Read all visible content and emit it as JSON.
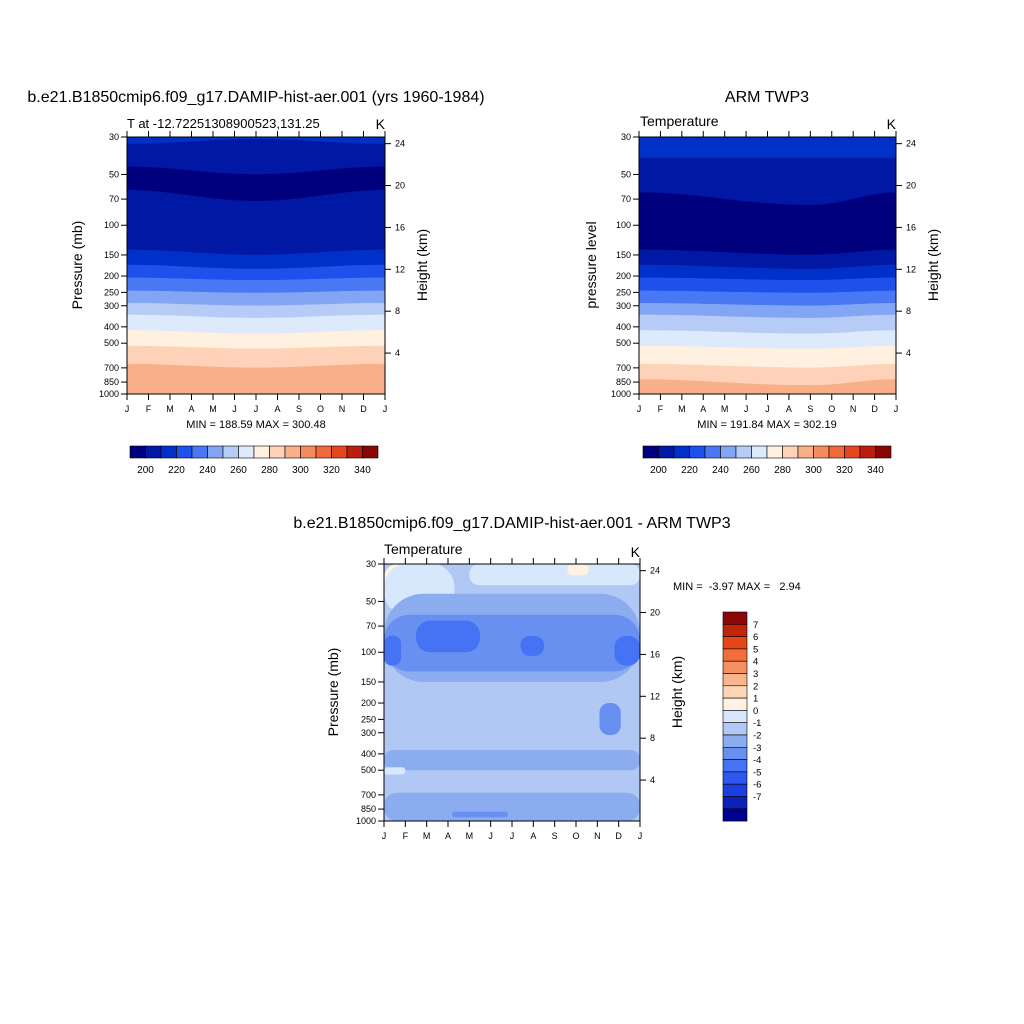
{
  "months": [
    "J",
    "F",
    "M",
    "A",
    "M",
    "J",
    "J",
    "A",
    "S",
    "O",
    "N",
    "D",
    "J"
  ],
  "pressure_ticks": [
    "30",
    "50",
    "70",
    "100",
    "150",
    "200",
    "250",
    "300",
    "400",
    "500",
    "700",
    "850",
    "1000"
  ],
  "height_ticks": [
    "24",
    "20",
    "16",
    "12",
    "8",
    "4"
  ],
  "abs_palette": [
    "#00007f",
    "#0018a3",
    "#0030c8",
    "#1e50ec",
    "#4a78f4",
    "#82a6f4",
    "#b6ccf6",
    "#dceafc",
    "#fff0e0",
    "#fdd2b8",
    "#f9b088",
    "#f58c60",
    "#f06a3c",
    "#e44620",
    "#bc1e0e",
    "#8a0606"
  ],
  "abs_colorbar_labels": [
    "200",
    "220",
    "240",
    "260",
    "280",
    "300",
    "320",
    "340"
  ],
  "diff_palette": [
    "#000090",
    "#0a22b8",
    "#1a3ee0",
    "#2e56f0",
    "#4672f4",
    "#6890f0",
    "#8cacf0",
    "#b2c8f4",
    "#d8e8fc",
    "#fff2e4",
    "#fdd6b8",
    "#f9b48c",
    "#f59062",
    "#f26c3c",
    "#e54618",
    "#c22408",
    "#8c0808"
  ],
  "diff_colorbar_labels": [
    "7",
    "6",
    "5",
    "4",
    "3",
    "2",
    "1",
    "0",
    "-1",
    "-2",
    "-3",
    "-4",
    "-5",
    "-6",
    "-7"
  ],
  "chart_data": [
    {
      "type": "heatmap",
      "title": "b.e21.B1850cmip6.f09_g17.DAMIP-hist-aer.001 (yrs 1960-1984)",
      "left_subtitle": "T at -12.72251308900523,131.25",
      "units": "K",
      "ylabel": "Pressure (mb)",
      "ylabel_right": "Height (km)",
      "stats": "MIN = 188.59 MAX = 300.48",
      "x_range": [
        0,
        12
      ],
      "y_range_mb": [
        1000,
        30
      ],
      "levels_mb": [
        30,
        50,
        70,
        100,
        150,
        200,
        250,
        300,
        400,
        500,
        700,
        850,
        1000
      ],
      "band_boundaries_mb_by_month": [
        {
          "month": 0,
          "boundaries": [
            33,
            45,
            62,
            140,
            172,
            205,
            245,
            290,
            340,
            420,
            520,
            665,
            820
          ]
        },
        {
          "month": 6,
          "boundaries": [
            31,
            50,
            72,
            150,
            182,
            212,
            252,
            300,
            355,
            440,
            540,
            700,
            890
          ]
        },
        {
          "month": 12,
          "boundaries": [
            33,
            45,
            62,
            140,
            172,
            205,
            245,
            290,
            340,
            420,
            520,
            665,
            820
          ]
        }
      ],
      "band_color_index": [
        2,
        1,
        0,
        1,
        2,
        3,
        4,
        5,
        6,
        7,
        8,
        9,
        10
      ]
    },
    {
      "type": "heatmap",
      "title": "ARM TWP3",
      "left_subtitle": "Temperature",
      "units": "K",
      "ylabel": "pressure level",
      "ylabel_right": "Height (km)",
      "stats": "MIN = 191.84 MAX = 302.19",
      "x_range": [
        0,
        12
      ],
      "y_range_mb": [
        1000,
        30
      ],
      "levels_mb": [
        30,
        50,
        70,
        100,
        150,
        200,
        250,
        300,
        400,
        500,
        700,
        850,
        1000
      ],
      "band_boundaries_mb_by_month": [
        {
          "month": 0,
          "boundaries": [
            40,
            64,
            140,
            172,
            205,
            245,
            290,
            340,
            420,
            520,
            665,
            820
          ]
        },
        {
          "month": 8,
          "boundaries": [
            40,
            76,
            150,
            182,
            212,
            252,
            300,
            355,
            440,
            540,
            700,
            890
          ]
        },
        {
          "month": 12,
          "boundaries": [
            40,
            64,
            140,
            172,
            205,
            245,
            290,
            340,
            420,
            520,
            665,
            820
          ]
        }
      ],
      "band_color_index": [
        2,
        1,
        0,
        1,
        2,
        3,
        4,
        5,
        6,
        7,
        8,
        9,
        10
      ]
    },
    {
      "type": "heatmap",
      "title": "b.e21.B1850cmip6.f09_g17.DAMIP-hist-aer.001 - ARM TWP3",
      "left_subtitle": "Temperature",
      "units": "K",
      "ylabel": "Pressure (mb)",
      "ylabel_right": "Height (km)",
      "stats": "MIN =  -3.97 MAX =   2.94",
      "x_range": [
        0,
        12
      ],
      "y_range_mb": [
        1000,
        30
      ],
      "background_value_range": [
        -1,
        0
      ],
      "regions": [
        {
          "value": "1 to 2",
          "months": [
            0,
            3
          ],
          "mb": [
            30,
            45
          ]
        },
        {
          "value": "0 to 1",
          "months": [
            0,
            3.3
          ],
          "mb": [
            30,
            60
          ]
        },
        {
          "value": "0 to 1",
          "months": [
            4,
            12
          ],
          "mb": [
            30,
            40
          ]
        },
        {
          "value": "1 to 2",
          "months": [
            8.6,
            9.6
          ],
          "mb": [
            30,
            35
          ]
        },
        {
          "value": "-2 to -1",
          "months": [
            0,
            12
          ],
          "mb": [
            45,
            150
          ]
        },
        {
          "value": "-3 to -2",
          "months": [
            0,
            12
          ],
          "mb": [
            60,
            130
          ]
        },
        {
          "value": "-4 to -3",
          "months": [
            1.5,
            4.5
          ],
          "mb": [
            65,
            100
          ]
        },
        {
          "value": "-4 to -3",
          "months": [
            6.4,
            7.5
          ],
          "mb": [
            80,
            105
          ]
        },
        {
          "value": "-4 to -3",
          "months": [
            0,
            0.8
          ],
          "mb": [
            80,
            120
          ]
        },
        {
          "value": "-4 to -3",
          "months": [
            10.8,
            12
          ],
          "mb": [
            80,
            120
          ]
        },
        {
          "value": "-1 to 0",
          "months": [
            5.7,
            8.5
          ],
          "mb": [
            150,
            480
          ]
        },
        {
          "value": "-2 to -1",
          "months": [
            0,
            12
          ],
          "mb": [
            380,
            500
          ]
        },
        {
          "value": "-3 to -2",
          "months": [
            10.1,
            11.1
          ],
          "mb": [
            200,
            310
          ]
        },
        {
          "value": "0 to 1",
          "months": [
            0,
            1
          ],
          "mb": [
            480,
            530
          ]
        },
        {
          "value": "-2 to -1",
          "months": [
            0,
            12
          ],
          "mb": [
            680,
            1000
          ]
        },
        {
          "value": "-3 to -2",
          "months": [
            3.2,
            5.8
          ],
          "mb": [
            880,
            950
          ]
        }
      ],
      "colorbar_levels": [
        -7,
        -6,
        -5,
        -4,
        -3,
        -2,
        -1,
        0,
        1,
        2,
        3,
        4,
        5,
        6,
        7
      ]
    }
  ]
}
